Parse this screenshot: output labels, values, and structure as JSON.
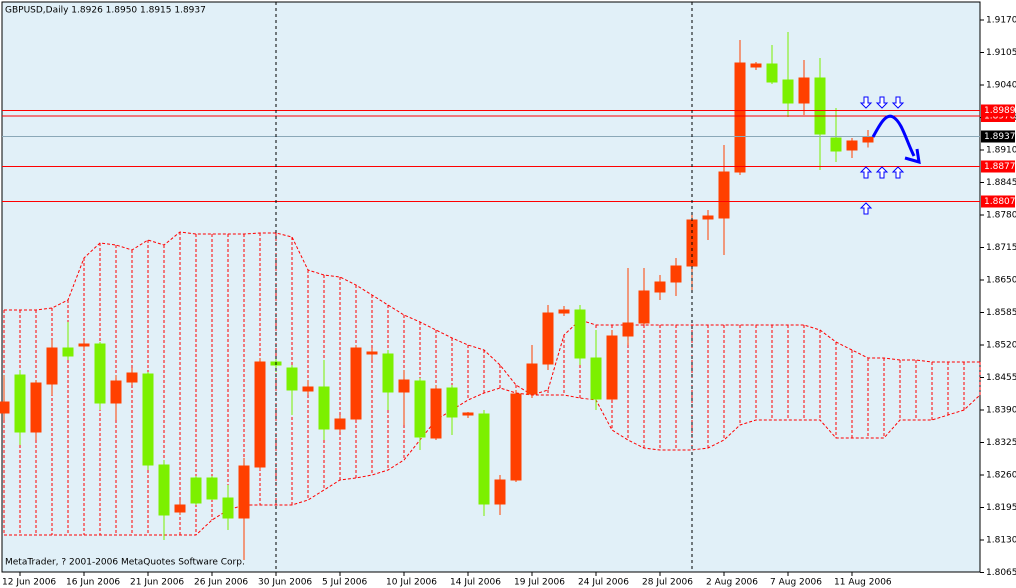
{
  "chart_data": {
    "type": "candlestick",
    "title": "GBPUSD,Daily  1.8926 1.8950 1.8915 1.8937",
    "footer": "MetaTrader, ? 2001-2006 MetaQuotes Software Corp.",
    "categories": [
      null,
      "12 Jun 2006",
      null,
      null,
      null,
      "16 Jun 2006",
      null,
      null,
      null,
      "21 Jun 2006",
      null,
      null,
      null,
      "26 Jun 2006",
      null,
      null,
      null,
      "30 Jun 2006",
      null,
      null,
      null,
      "5 Jul 2006",
      null,
      null,
      null,
      "10 Jul 2006",
      null,
      null,
      null,
      "14 Jul 2006",
      null,
      null,
      null,
      "19 Jul 2006",
      null,
      null,
      null,
      "24 Jul 2006",
      null,
      null,
      null,
      "28 Jul 2006",
      null,
      null,
      null,
      "2 Aug 2006",
      null,
      null,
      null,
      "7 Aug 2006",
      null,
      null,
      null,
      "11 Aug 2006",
      null,
      null,
      null,
      null,
      null,
      null,
      null,
      null
    ],
    "open": [
      1.8384,
      1.846,
      1.8346,
      1.8442,
      1.8514,
      1.8518,
      1.8522,
      1.8404,
      1.8446,
      1.8462,
      1.828,
      1.8186,
      1.8254,
      1.8254,
      1.8214,
      1.8174,
      1.8276,
      1.8486,
      1.8474,
      1.8428,
      1.8436,
      1.8352,
      1.8372,
      1.8502,
      1.8502,
      1.8426,
      1.8448,
      1.8334,
      1.8434,
      1.838,
      1.8382,
      1.8202,
      1.825,
      1.8422,
      1.8482,
      1.8584,
      1.859,
      1.8494,
      1.8412,
      1.8538,
      1.8564,
      1.8626,
      1.8646,
      1.8678,
      1.8772,
      1.8774,
      1.8866,
      1.9076,
      1.9082,
      1.905,
      1.9004,
      1.9054,
      1.8934,
      1.891,
      1.8926,
      null,
      null,
      null,
      null,
      null,
      null,
      null
    ],
    "high": [
      1.846,
      1.847,
      1.845,
      1.853,
      1.8566,
      1.853,
      1.8526,
      1.846,
      1.8474,
      1.8466,
      1.829,
      1.821,
      1.8258,
      1.8258,
      1.824,
      1.8294,
      1.8494,
      1.8494,
      1.848,
      1.845,
      1.849,
      1.838,
      1.852,
      1.8514,
      1.851,
      1.847,
      1.8454,
      1.844,
      1.844,
      1.8386,
      1.839,
      1.826,
      1.843,
      1.852,
      1.86,
      1.8598,
      1.86,
      1.855,
      1.855,
      1.8674,
      1.8674,
      1.866,
      1.8694,
      1.878,
      1.879,
      1.892,
      1.913,
      1.9086,
      1.912,
      1.9146,
      1.909,
      1.9094,
      1.8994,
      1.8934,
      1.895,
      null,
      null,
      null,
      null,
      null,
      null,
      null
    ],
    "low": [
      1.837,
      1.832,
      1.833,
      1.842,
      1.849,
      1.851,
      1.839,
      1.837,
      1.844,
      1.827,
      1.813,
      1.818,
      1.82,
      1.821,
      1.815,
      1.809,
      1.827,
      1.8466,
      1.838,
      1.842,
      1.833,
      1.8346,
      1.837,
      1.849,
      1.839,
      1.836,
      1.831,
      1.833,
      1.834,
      1.8374,
      1.8178,
      1.818,
      1.8246,
      1.8414,
      1.847,
      1.8578,
      1.848,
      1.839,
      1.841,
      1.852,
      1.856,
      1.861,
      1.8618,
      1.8624,
      1.873,
      1.87,
      1.886,
      1.907,
      1.9042,
      1.8976,
      1.898,
      1.887,
      1.8886,
      1.8894,
      1.8915,
      null,
      null,
      null,
      null,
      null,
      null,
      null
    ],
    "close": [
      1.8406,
      1.8346,
      1.8444,
      1.8514,
      1.8498,
      1.8522,
      1.8404,
      1.8448,
      1.8464,
      1.828,
      1.818,
      1.82,
      1.8204,
      1.8212,
      1.8174,
      1.8278,
      1.8486,
      1.848,
      1.843,
      1.8436,
      1.8352,
      1.8372,
      1.8514,
      1.8506,
      1.8426,
      1.845,
      1.8336,
      1.8432,
      1.8376,
      1.8384,
      1.8202,
      1.825,
      1.8422,
      1.8482,
      1.8584,
      1.859,
      1.8494,
      1.8412,
      1.8538,
      1.8564,
      1.8628,
      1.8646,
      1.8678,
      1.877,
      1.8778,
      1.8866,
      1.9084,
      1.9082,
      1.9046,
      1.9004,
      1.9054,
      1.8942,
      1.8908,
      1.8928,
      1.8937,
      null,
      null,
      null,
      null,
      null,
      null,
      null
    ],
    "up_color": "#ff4000",
    "down_color": "#7cf000",
    "cloud": {
      "color": "#ff0000",
      "upper": [
        1.859,
        1.859,
        1.859,
        1.8594,
        1.861,
        1.8694,
        1.8724,
        1.872,
        1.871,
        1.873,
        1.872,
        1.8746,
        1.8742,
        1.8742,
        1.8742,
        1.8742,
        1.8744,
        1.8744,
        1.8736,
        1.867,
        1.866,
        1.8656,
        1.864,
        1.862,
        1.86,
        1.858,
        1.8566,
        1.855,
        1.8534,
        1.852,
        1.851,
        1.848,
        1.844,
        1.842,
        1.843,
        1.854,
        1.857,
        1.856,
        1.856,
        1.856,
        1.856,
        1.856,
        1.856,
        1.856,
        1.856,
        1.856,
        1.856,
        1.856,
        1.856,
        1.856,
        1.856,
        1.855,
        1.8526,
        1.851,
        1.8494,
        1.8494,
        1.849,
        1.849,
        1.8486,
        1.8486,
        1.8486,
        1.8486
      ],
      "lower": [
        1.814,
        1.814,
        1.814,
        1.814,
        1.814,
        1.814,
        1.814,
        1.814,
        1.814,
        1.814,
        1.814,
        1.814,
        1.814,
        1.817,
        1.819,
        1.82,
        1.82,
        1.82,
        1.82,
        1.821,
        1.823,
        1.825,
        1.8254,
        1.826,
        1.827,
        1.829,
        1.833,
        1.837,
        1.839,
        1.841,
        1.8424,
        1.8434,
        1.8424,
        1.842,
        1.842,
        1.842,
        1.8414,
        1.841,
        1.835,
        1.833,
        1.8314,
        1.831,
        1.831,
        1.831,
        1.8314,
        1.833,
        1.836,
        1.837,
        1.837,
        1.837,
        1.837,
        1.837,
        1.8334,
        1.8334,
        1.8334,
        1.8334,
        1.837,
        1.837,
        1.837,
        1.838,
        1.839,
        1.842
      ]
    },
    "levels": [
      1.8978,
      1.8989,
      1.8877,
      1.8807
    ],
    "level_color": "#ff0000",
    "bid": 1.8937,
    "bid_color": "#8aa8b8",
    "ylim": [
      1.8066,
      1.9206
    ],
    "yticks": [
      {
        "value": 1.917,
        "label": "1.9170"
      },
      1.9105,
      {
        "value": 1.904,
        "label": "1.9040"
      },
      1.8975,
      {
        "value": 1.891,
        "label": "1.8910"
      },
      1.8845,
      {
        "value": 1.878,
        "label": "1.8780"
      },
      1.8715,
      {
        "value": 1.865,
        "label": "1.8650"
      },
      1.8585,
      {
        "value": 1.852,
        "label": "1.8520"
      },
      1.8455,
      {
        "value": 1.839,
        "label": "1.8390"
      },
      1.8325,
      {
        "value": 1.826,
        "label": "1.8260"
      },
      1.8195,
      {
        "value": 1.813,
        "label": "1.8130"
      },
      1.8065
    ],
    "background": "#e1f0f8"
  }
}
